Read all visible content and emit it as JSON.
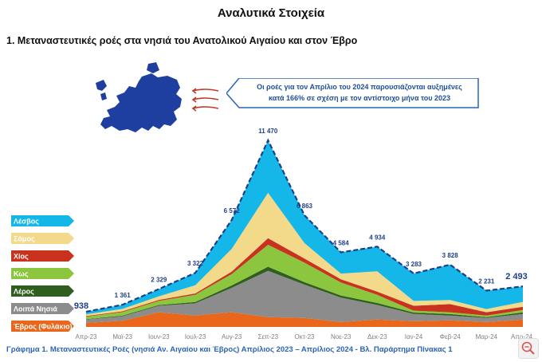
{
  "header": {
    "title": "Αναλυτικά Στοιχεία",
    "section": "1.  Μεταναστευτικές ροές στα νησιά του Ανατολικού Αιγαίου και στον Έβρο"
  },
  "callout": {
    "line1": "Οι ροές για τον Απρίλιο του 2024 παρουσιάζονται αυξημένες",
    "line2": "κατά 166% σε σχέση με τον αντίστοιχο μήνα του 2023"
  },
  "caption": "Γράφημα 1. Μεταναστευτικές Ροές (νησιά Αν. Αιγαίου και Έβρος) Απρίλιος 2023 – Απρίλιος 2024 - Βλ. Παράρτημα  Πίνακας 1",
  "icons": {
    "map": "europe-map-icon",
    "arrows": "arrow-left-icon",
    "zoom": "zoom-icon"
  },
  "chart_data": {
    "type": "area",
    "stacked": true,
    "categories": [
      "Απρ-23",
      "Μαϊ-23",
      "Ιουν-23",
      "Ιουλ-23",
      "Αυγ-23",
      "Σεπ-23",
      "Οκτ-23",
      "Νοε-23",
      "Δεκ-23",
      "Ιαν-24",
      "Φεβ-24",
      "Μαρ-24",
      "Απρ-24"
    ],
    "totals": [
      938,
      1361,
      2329,
      3322,
      6572,
      11470,
      6863,
      4584,
      4934,
      3283,
      3828,
      2231,
      2493
    ],
    "total_labels": [
      "938",
      "1 361",
      "2 329",
      "3 322",
      "6 572",
      "11 470",
      "6 863",
      "4 584",
      "4 934",
      "3 283",
      "3 828",
      "2 231",
      "2 493"
    ],
    "series": [
      {
        "name": "Έβρος (Φυλάκιο)",
        "color": "#e9661b",
        "values": [
          250,
          380,
          900,
          700,
          900,
          600,
          550,
          300,
          450,
          350,
          400,
          300,
          450
        ]
      },
      {
        "name": "Λοιπά Νησιά",
        "color": "#8c8c8c",
        "values": [
          200,
          270,
          400,
          750,
          1500,
          2850,
          2050,
          1500,
          900,
          450,
          300,
          250,
          350
        ]
      },
      {
        "name": "Λέρος",
        "color": "#2f5e1e",
        "values": [
          30,
          40,
          50,
          80,
          150,
          250,
          150,
          130,
          120,
          80,
          90,
          50,
          90
        ]
      },
      {
        "name": "Κως",
        "color": "#8cc63e",
        "values": [
          150,
          220,
          250,
          450,
          700,
          1350,
          1200,
          800,
          500,
          120,
          110,
          100,
          150
        ]
      },
      {
        "name": "Χίος",
        "color": "#c8321e",
        "values": [
          40,
          50,
          60,
          80,
          150,
          400,
          250,
          200,
          200,
          300,
          500,
          200,
          200
        ]
      },
      {
        "name": "Σάμος",
        "color": "#f3d98a",
        "values": [
          100,
          150,
          220,
          500,
          1400,
          2800,
          950,
          350,
          1250,
          300,
          250,
          200,
          300
        ]
      },
      {
        "name": "Λέσβος",
        "color": "#14b7e8",
        "values": [
          168,
          251,
          449,
          762,
          1772,
          3220,
          1713,
          1304,
          1514,
          1683,
          2178,
          1131,
          953
        ]
      }
    ],
    "ylim": [
      0,
      12000
    ],
    "legend": "left"
  }
}
